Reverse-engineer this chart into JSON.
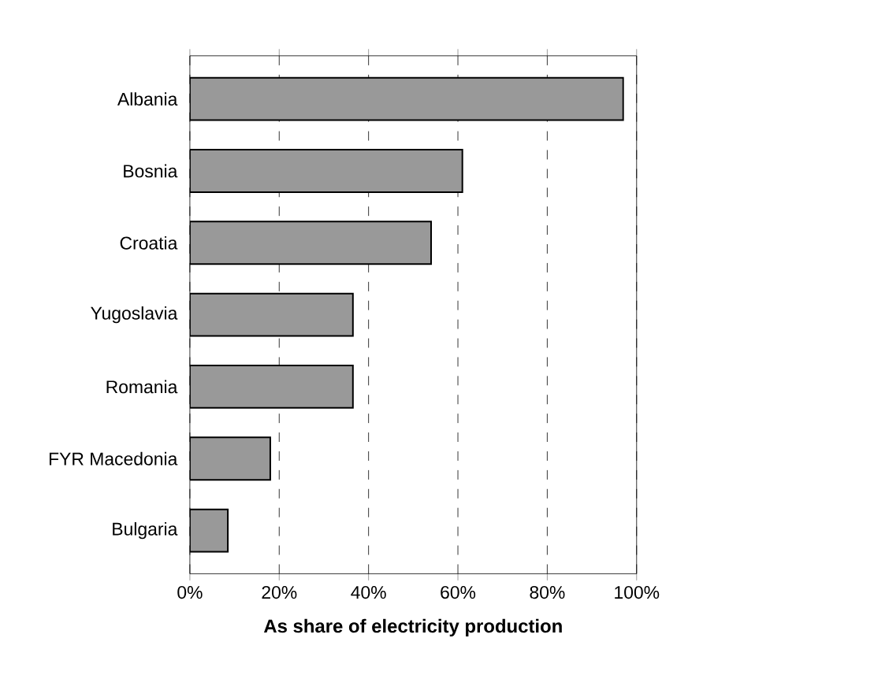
{
  "chart_data": {
    "type": "bar",
    "orientation": "horizontal",
    "xlabel": "As share of electricity production",
    "categories": [
      "Albania",
      "Bosnia",
      "Croatia",
      "Yugoslavia",
      "Romania",
      "FYR Macedonia",
      "Bulgaria"
    ],
    "values": [
      97,
      61,
      54,
      36.5,
      36.5,
      18,
      8.5
    ],
    "color": "#999999",
    "xlim": [
      0,
      100
    ],
    "xticks": [
      {
        "value": 0,
        "label": "0%"
      },
      {
        "value": 20,
        "label": "20%"
      },
      {
        "value": 40,
        "label": "40%"
      },
      {
        "value": 60,
        "label": "60%"
      },
      {
        "value": 80,
        "label": "80%"
      },
      {
        "value": 100,
        "label": "100%"
      }
    ],
    "grid": "x"
  }
}
